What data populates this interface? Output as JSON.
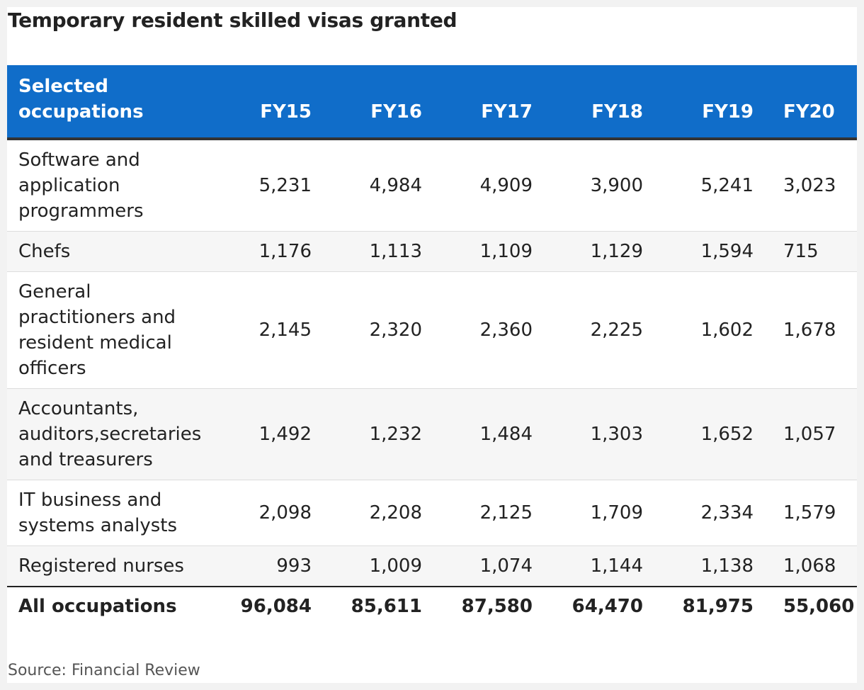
{
  "title": "Temporary resident skilled visas granted",
  "source": "Source: Financial Review",
  "colors": {
    "header_bg": "#106dc9",
    "header_text": "#ffffff",
    "stripe": "#f6f6f6"
  },
  "chart_data": {
    "type": "table",
    "title": "Temporary resident skilled visas granted",
    "columns": [
      "Selected occupations",
      "FY15",
      "FY16",
      "FY17",
      "FY18",
      "FY19",
      "FY20"
    ],
    "rows": [
      {
        "occupation": "Software and application programmers",
        "values": [
          "5,231",
          "4,984",
          "4,909",
          "3,900",
          "5,241",
          "3,023"
        ]
      },
      {
        "occupation": "Chefs",
        "values": [
          "1,176",
          "1,113",
          "1,109",
          "1,129",
          "1,594",
          "715"
        ]
      },
      {
        "occupation": "General practitioners and resident medical officers",
        "values": [
          "2,145",
          "2,320",
          "2,360",
          "2,225",
          "1,602",
          "1,678"
        ]
      },
      {
        "occupation": "Accountants, auditors,secretaries and treasurers",
        "values": [
          "1,492",
          "1,232",
          "1,484",
          "1,303",
          "1,652",
          "1,057"
        ]
      },
      {
        "occupation": "IT business and systems analysts",
        "values": [
          "2,098",
          "2,208",
          "2,125",
          "1,709",
          "2,334",
          "1,579"
        ]
      },
      {
        "occupation": "Registered nurses",
        "values": [
          "993",
          "1,009",
          "1,074",
          "1,144",
          "1,138",
          "1,068"
        ]
      }
    ],
    "total": {
      "occupation": "All occupations",
      "values": [
        "96,084",
        "85,611",
        "87,580",
        "64,470",
        "81,975",
        "55,060"
      ]
    }
  }
}
